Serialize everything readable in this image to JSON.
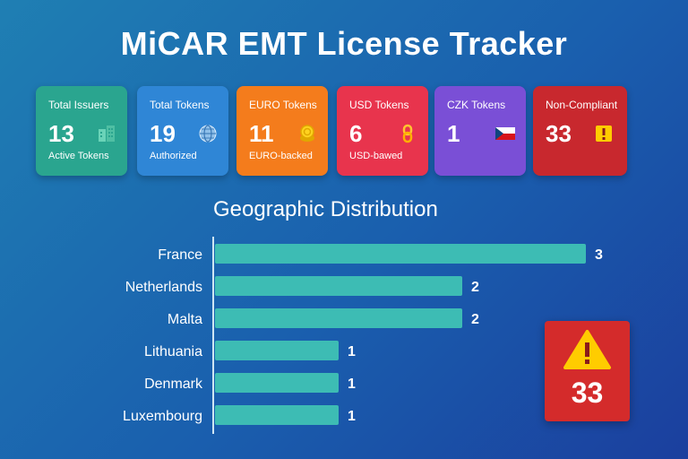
{
  "title": "MiCAR EMT License Tracker",
  "cards": [
    {
      "label": "Total Issuers",
      "value": "13",
      "sub": "Active Tokens",
      "icon": "building-icon",
      "color": "#2aa58f"
    },
    {
      "label": "Total Tokens",
      "value": "19",
      "sub": "Authorized",
      "icon": "globe-icon",
      "color": "#2f86d6"
    },
    {
      "label": "EURO Tokens",
      "value": "11",
      "sub": "EURO-backed",
      "icon": "coin-icon",
      "color": "#f47c1c"
    },
    {
      "label": "USD Tokens",
      "value": "6",
      "sub": "USD-bawed",
      "icon": "chain-link-icon",
      "color": "#e8344d"
    },
    {
      "label": "CZK Tokens",
      "value": "1",
      "sub": "",
      "icon": "czech-flag-icon",
      "color": "#7a4fd6"
    },
    {
      "label": "Non-Compliant",
      "value": "33",
      "sub": "",
      "icon": "warning-icon",
      "color": "#c8282e"
    }
  ],
  "section_title": "Geographic Distribution",
  "alert": {
    "value": "33",
    "icon": "warning-icon"
  },
  "colors": {
    "bar": "#3dbcb4",
    "axis": "#cfe6f3"
  },
  "chart_data": {
    "type": "bar",
    "orientation": "horizontal",
    "title": "Geographic Distribution",
    "categories": [
      "France",
      "Netherlands",
      "Malta",
      "Lithuania",
      "Denmark",
      "Luxembourg"
    ],
    "values": [
      3,
      2,
      2,
      1,
      1,
      1
    ],
    "xlabel": "",
    "ylabel": "",
    "grid": false
  }
}
